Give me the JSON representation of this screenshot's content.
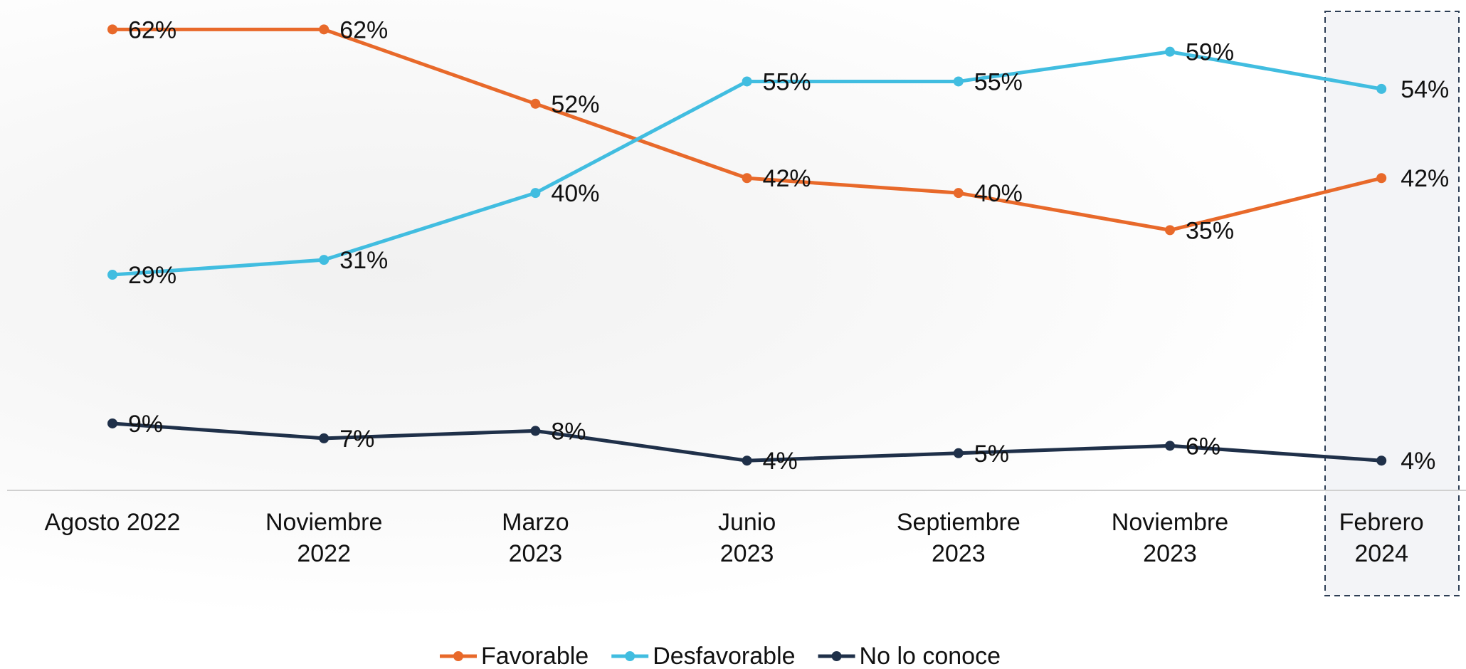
{
  "chart_data": {
    "type": "line",
    "categories": [
      "Agosto 2022",
      "Noviembre\n2022",
      "Marzo\n2023",
      "Junio\n2023",
      "Septiembre\n2023",
      "Noviembre\n2023",
      "Febrero\n2024"
    ],
    "series": [
      {
        "name": "Favorable",
        "color": "#e8692a",
        "values": [
          62,
          62,
          52,
          42,
          40,
          35,
          42
        ],
        "value_labels": [
          "62%",
          "62%",
          "52%",
          "42%",
          "40%",
          "35%",
          "42%"
        ]
      },
      {
        "name": "Desfavorable",
        "color": "#41bde0",
        "values": [
          29,
          31,
          40,
          55,
          55,
          59,
          54
        ],
        "value_labels": [
          "29%",
          "31%",
          "40%",
          "55%",
          "55%",
          "59%",
          "54%"
        ]
      },
      {
        "name": "No lo conoce",
        "color": "#1f3049",
        "values": [
          9,
          7,
          8,
          4,
          5,
          6,
          4
        ],
        "value_labels": [
          "9%",
          "7%",
          "8%",
          "4%",
          "5%",
          "6%",
          "4%"
        ]
      }
    ],
    "ylim": [
      0,
      65
    ],
    "legend": "bottom"
  }
}
